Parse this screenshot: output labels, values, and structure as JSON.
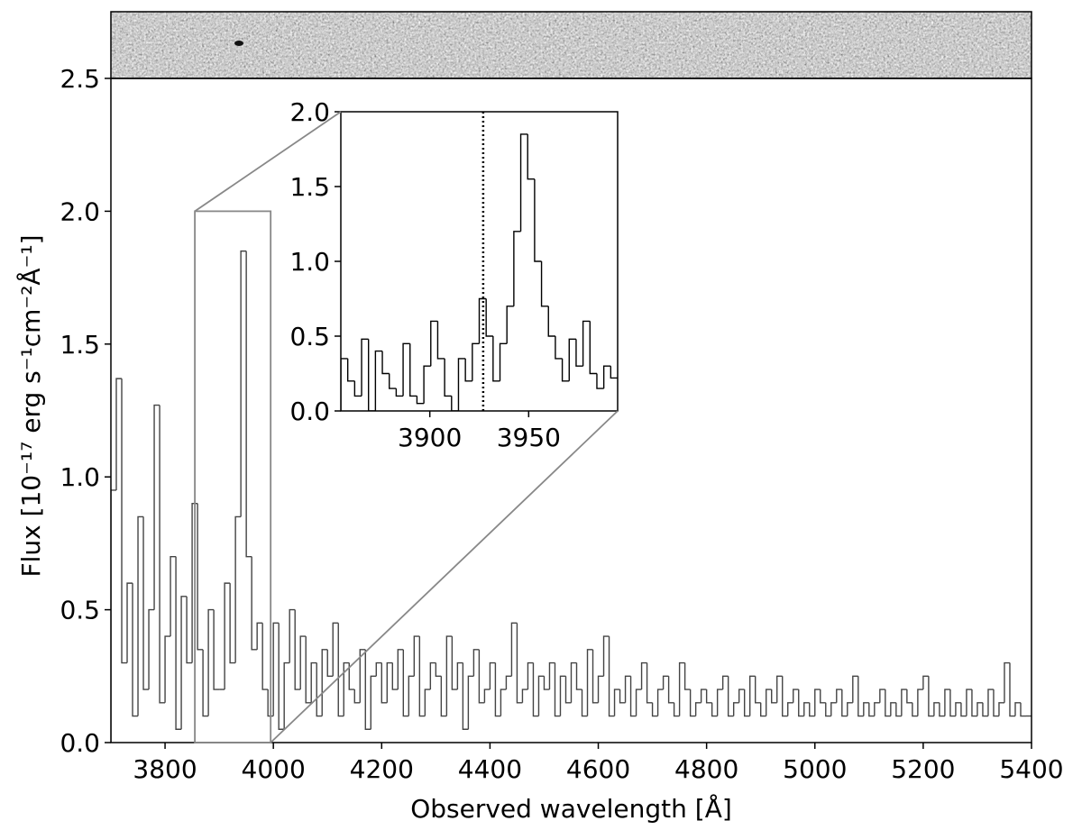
{
  "chart_data": [
    {
      "type": "histogram",
      "xlabel": "Observed wavelength [Å]",
      "ylabel": "Flux [10⁻¹⁷ erg s⁻¹cm⁻²Å⁻¹]",
      "xlim": [
        3700,
        5400
      ],
      "ylim": [
        0,
        2.5
      ],
      "xticks": [
        3800,
        4000,
        4200,
        4400,
        4600,
        4800,
        5000,
        5200,
        5400
      ],
      "yticks": [
        {
          "value": 0,
          "label": "0.0"
        },
        0.5,
        {
          "value": 1,
          "label": "1.0"
        },
        1.5,
        {
          "value": 2,
          "label": "2.0"
        },
        2.5
      ],
      "color": "#444444",
      "bins": [
        3700,
        3710,
        3720,
        3730,
        3740,
        3750,
        3760,
        3770,
        3780,
        3790,
        3800,
        3810,
        3820,
        3830,
        3840,
        3850,
        3860,
        3870,
        3880,
        3890,
        3900,
        3910,
        3920,
        3930,
        3940,
        3950,
        3960,
        3970,
        3980,
        3990,
        4000,
        4010,
        4020,
        4030,
        4040,
        4050,
        4060,
        4070,
        4080,
        4090,
        4100,
        4110,
        4120,
        4130,
        4140,
        4150,
        4160,
        4170,
        4180,
        4190,
        4200,
        4210,
        4220,
        4230,
        4240,
        4250,
        4260,
        4270,
        4280,
        4290,
        4300,
        4310,
        4320,
        4330,
        4340,
        4350,
        4360,
        4370,
        4380,
        4390,
        4400,
        4410,
        4420,
        4430,
        4440,
        4450,
        4460,
        4470,
        4480,
        4490,
        4500,
        4510,
        4520,
        4530,
        4540,
        4550,
        4560,
        4570,
        4580,
        4590,
        4600,
        4610,
        4620,
        4630,
        4640,
        4650,
        4660,
        4670,
        4680,
        4690,
        4700,
        4710,
        4720,
        4730,
        4740,
        4750,
        4760,
        4770,
        4780,
        4790,
        4800,
        4810,
        4820,
        4830,
        4840,
        4850,
        4860,
        4870,
        4880,
        4890,
        4900,
        4910,
        4920,
        4930,
        4940,
        4950,
        4960,
        4970,
        4980,
        4990,
        5000,
        5010,
        5020,
        5030,
        5040,
        5050,
        5060,
        5070,
        5080,
        5090,
        5100,
        5110,
        5120,
        5130,
        5140,
        5150,
        5160,
        5170,
        5180,
        5190,
        5200,
        5210,
        5220,
        5230,
        5240,
        5250,
        5260,
        5270,
        5280,
        5290,
        5300,
        5310,
        5320,
        5330,
        5340,
        5350,
        5360,
        5370,
        5380,
        5390,
        5400
      ],
      "values": [
        0.95,
        1.37,
        0.3,
        0.6,
        0.1,
        0.85,
        0.2,
        0.5,
        1.27,
        0.15,
        0.4,
        0.7,
        0.05,
        0.55,
        0.3,
        0.9,
        0.35,
        0.1,
        0.5,
        0.2,
        0.2,
        0.6,
        0.3,
        0.85,
        1.85,
        0.7,
        0.35,
        0.45,
        0.2,
        0.1,
        0.45,
        0.05,
        0.3,
        0.5,
        0.2,
        0.4,
        0.15,
        0.3,
        0.1,
        0.35,
        0.25,
        0.45,
        0.1,
        0.3,
        0.2,
        0.15,
        0.35,
        0.05,
        0.25,
        0.3,
        0.15,
        0.3,
        0.2,
        0.35,
        0.1,
        0.25,
        0.4,
        0.1,
        0.2,
        0.3,
        0.25,
        0.1,
        0.4,
        0.2,
        0.3,
        0.05,
        0.25,
        0.35,
        0.15,
        0.2,
        0.3,
        0.1,
        0.2,
        0.25,
        0.45,
        0.15,
        0.2,
        0.3,
        0.1,
        0.25,
        0.2,
        0.3,
        0.1,
        0.25,
        0.15,
        0.3,
        0.2,
        0.1,
        0.35,
        0.15,
        0.25,
        0.4,
        0.1,
        0.2,
        0.15,
        0.25,
        0.1,
        0.2,
        0.3,
        0.15,
        0.1,
        0.2,
        0.25,
        0.15,
        0.1,
        0.3,
        0.2,
        0.1,
        0.15,
        0.2,
        0.15,
        0.1,
        0.2,
        0.25,
        0.1,
        0.15,
        0.2,
        0.1,
        0.25,
        0.15,
        0.1,
        0.2,
        0.15,
        0.25,
        0.1,
        0.15,
        0.2,
        0.1,
        0.15,
        0.1,
        0.2,
        0.15,
        0.1,
        0.15,
        0.2,
        0.1,
        0.15,
        0.25,
        0.1,
        0.15,
        0.1,
        0.15,
        0.2,
        0.1,
        0.15,
        0.1,
        0.2,
        0.15,
        0.1,
        0.2,
        0.25,
        0.1,
        0.15,
        0.1,
        0.2,
        0.1,
        0.15,
        0.1,
        0.2,
        0.1,
        0.15,
        0.1,
        0.2,
        0.1,
        0.15,
        0.3,
        0.1,
        0.15,
        0.1,
        0.1
      ]
    },
    {
      "type": "histogram",
      "xlim": [
        3855,
        3995
      ],
      "ylim": [
        0,
        2
      ],
      "xticks": [
        3900,
        3950
      ],
      "yticks": [
        {
          "value": 0,
          "label": "0.0"
        },
        0.5,
        {
          "value": 1,
          "label": "1.0"
        },
        1.5,
        {
          "value": 2,
          "label": "2.0"
        }
      ],
      "color": "#000000",
      "marker_x": 3927,
      "bins": [
        3855,
        3858.5,
        3862,
        3865.5,
        3869,
        3872.5,
        3876,
        3879.5,
        3883,
        3886.5,
        3890,
        3893.5,
        3897,
        3900.5,
        3904,
        3907.5,
        3911,
        3914.5,
        3918,
        3921.5,
        3925,
        3928.5,
        3932,
        3935.5,
        3939,
        3942.5,
        3946,
        3949.5,
        3953,
        3956.5,
        3960,
        3963.5,
        3967,
        3970.5,
        3974,
        3977.5,
        3981,
        3984.5,
        3988,
        3991.5,
        3995
      ],
      "values": [
        0.35,
        0.2,
        0.1,
        0.48,
        0.0,
        0.4,
        0.25,
        0.15,
        0.1,
        0.45,
        0.1,
        0.05,
        0.3,
        0.6,
        0.35,
        0.1,
        0.0,
        0.35,
        0.2,
        0.45,
        0.75,
        0.5,
        0.2,
        0.45,
        0.7,
        1.2,
        1.85,
        1.55,
        1.0,
        0.7,
        0.5,
        0.35,
        0.2,
        0.48,
        0.3,
        0.6,
        0.25,
        0.15,
        0.3,
        0.22
      ]
    }
  ]
}
